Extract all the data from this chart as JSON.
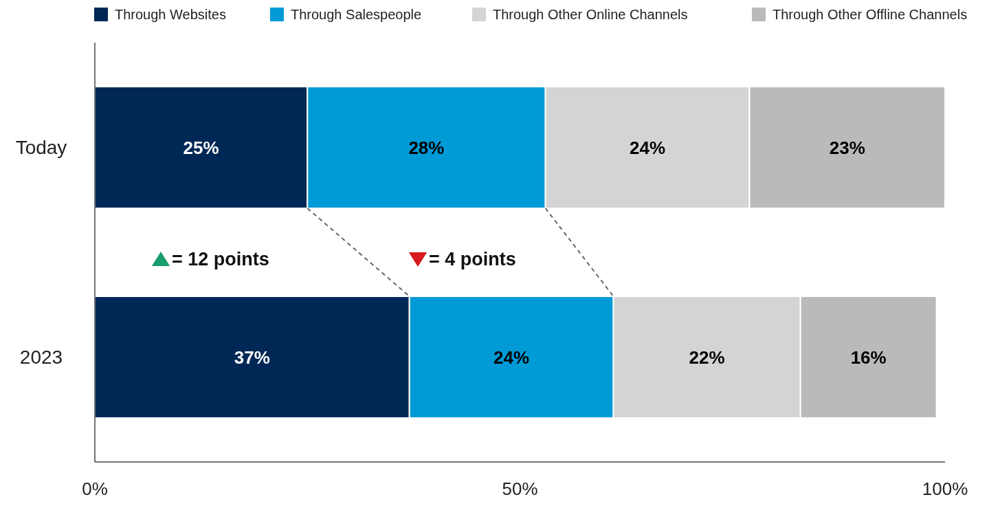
{
  "chart_data": {
    "type": "bar",
    "orientation": "horizontal",
    "stacked": true,
    "categories": [
      "Today",
      "2023"
    ],
    "series": [
      {
        "name": "Through Websites",
        "color": "#002856",
        "values": [
          25,
          37
        ],
        "value_labels": [
          "25%",
          "37%"
        ]
      },
      {
        "name": "Through Salespeople",
        "color": "#009ad6",
        "values": [
          28,
          24
        ],
        "value_labels": [
          "28%",
          "24%"
        ]
      },
      {
        "name": "Through Other Online Channels",
        "color": "#d4d4d4",
        "values": [
          24,
          22
        ],
        "value_labels": [
          "24%",
          "22%"
        ]
      },
      {
        "name": "Through Other Offline Channels",
        "color": "#bababa",
        "values": [
          23,
          16
        ],
        "value_labels": [
          "23%",
          "16%"
        ]
      }
    ],
    "xlim": [
      0,
      100
    ],
    "xticks": [
      {
        "value": 0,
        "label": "0%"
      },
      {
        "value": 50,
        "label": "50%"
      },
      {
        "value": 100,
        "label": "100%"
      }
    ],
    "grid": false,
    "legend": "top",
    "annotations": [
      "= 12 points",
      "= 4 points"
    ]
  }
}
